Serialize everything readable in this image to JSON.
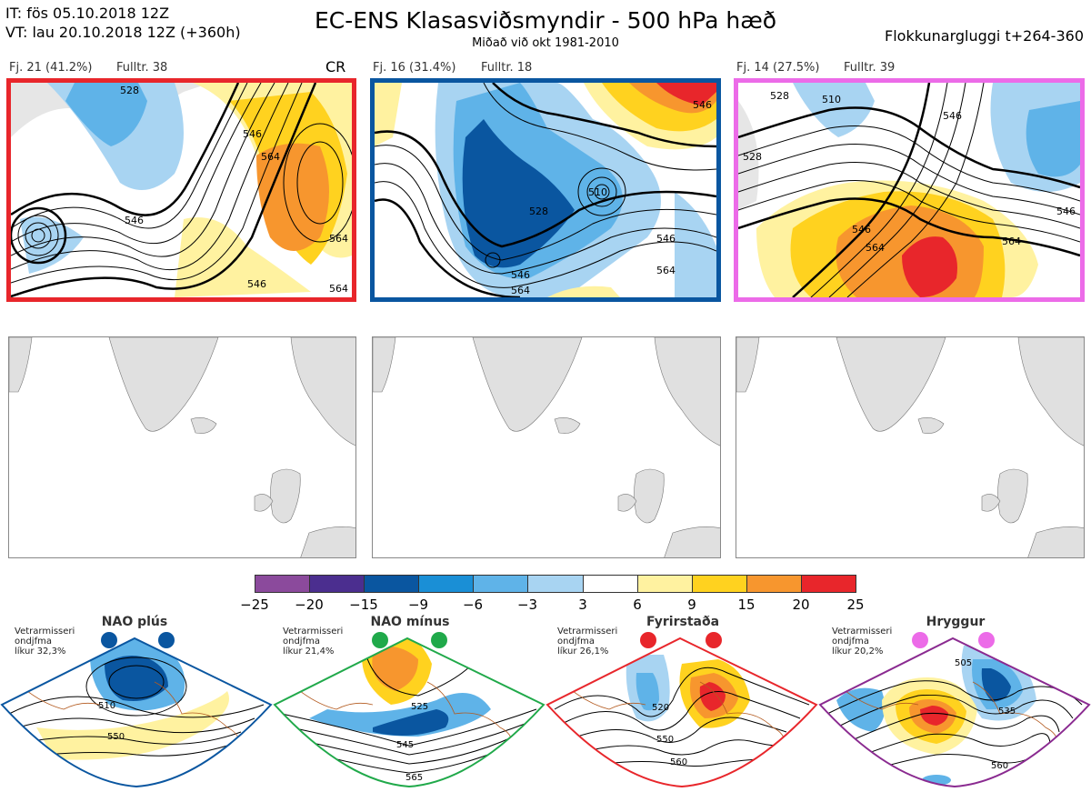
{
  "header": {
    "it_line": "IT: fös 05.10.2018 12Z",
    "vt_line": "VT: lau 20.10.2018 12Z  (+360h)",
    "title": "EC-ENS Klasasviðsmyndir - 500 hPa hæð",
    "subtitle": "Miðað við okt 1981-2010",
    "window": "Flokkunargluggi t+264-360"
  },
  "panels": [
    {
      "fj": "Fj. 21 (41.2%)",
      "rep": "Fulltr. 38",
      "tag": "CR",
      "border": "#e8262b",
      "labels": [
        "528",
        "546",
        "564",
        "546",
        "546",
        "564",
        "564"
      ]
    },
    {
      "fj": "Fj. 16 (31.4%)",
      "rep": "Fulltr. 18",
      "tag": "",
      "border": "#0a56a0",
      "labels": [
        "546",
        "528",
        "510",
        "546",
        "546",
        "564",
        "564"
      ]
    },
    {
      "fj": "Fj. 14 (27.5%)",
      "rep": "Fulltr. 39",
      "tag": "",
      "border": "#ec6be8",
      "labels": [
        "528",
        "510",
        "528",
        "546",
        "546",
        "564",
        "546",
        "564"
      ]
    }
  ],
  "colorbar": {
    "ticks": [
      "−25",
      "−20",
      "−15",
      "−9",
      "−6",
      "−3",
      "3",
      "6",
      "9",
      "15",
      "20",
      "25"
    ],
    "colors": [
      "#8b4a9c",
      "#4b2e8f",
      "#0a56a0",
      "#1a8fd6",
      "#5fb3e8",
      "#a8d4f2",
      "#ffffff",
      "#fff2a0",
      "#ffd21f",
      "#f7962e",
      "#e8262b",
      "#b40d14"
    ]
  },
  "climate": [
    {
      "title": "NAO plús",
      "line1": "Vetrarmisseri",
      "line2": "ondjfma",
      "line3": "líkur 32,3%",
      "dot": "#0a56a0",
      "border": "#0a56a0",
      "labels": [
        "510",
        "550"
      ]
    },
    {
      "title": "NAO mínus",
      "line1": "Vetrarmisseri",
      "line2": "ondjfma",
      "line3": "líkur 21,4%",
      "dot": "#20a94a",
      "border": "#20a94a",
      "labels": [
        "525",
        "545",
        "565"
      ]
    },
    {
      "title": "Fyrirstaða",
      "line1": "Vetrarmisseri",
      "line2": "ondjfma",
      "line3": "líkur 26,1%",
      "dot": "#e8262b",
      "border": "#e8262b",
      "labels": [
        "520",
        "550",
        "560"
      ]
    },
    {
      "title": "Hryggur",
      "line1": "Vetrarmisseri",
      "line2": "ondjfma",
      "line3": "líkur 20,2%",
      "dot": "#ec6be8",
      "border": "#8a2a90",
      "labels": [
        "505",
        "535",
        "560"
      ]
    }
  ],
  "chart_data": {
    "type": "heatmap",
    "title": "EC-ENS Klasasviðsmyndir - 500 hPa hæð",
    "colorbar_ticks": [
      -25,
      -20,
      -15,
      -9,
      -6,
      -3,
      3,
      6,
      9,
      15,
      20,
      25
    ],
    "clusters": [
      {
        "name": "Fj. 21",
        "percent": 41.2,
        "representative": 38
      },
      {
        "name": "Fj. 16",
        "percent": 31.4,
        "representative": 18
      },
      {
        "name": "Fj. 14",
        "percent": 27.5,
        "representative": 39
      }
    ],
    "regimes": [
      {
        "name": "NAO plús",
        "probability": 32.3
      },
      {
        "name": "NAO mínus",
        "probability": 21.4
      },
      {
        "name": "Fyrirstaða",
        "probability": 26.1
      },
      {
        "name": "Hryggur",
        "probability": 20.2
      }
    ]
  }
}
